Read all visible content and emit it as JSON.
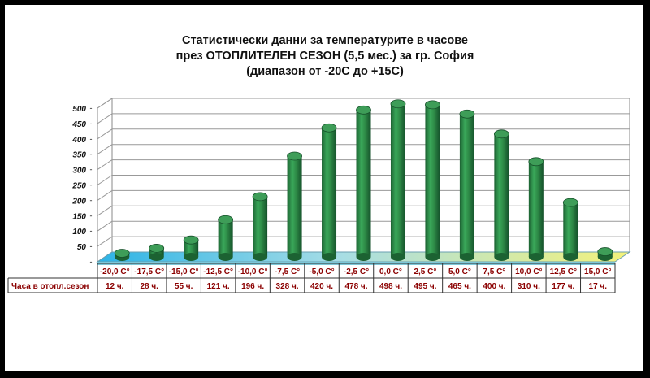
{
  "title": {
    "line1": "Статистически данни за температурите в часове",
    "line2": "през ОТОПЛИТЕЛЕН СЕЗОН (5,5 мес.) за гр. София",
    "line3": "(диапазон от -20С до +15С)"
  },
  "chart_data": {
    "type": "bar",
    "title": "Статистически данни за температурите в часове през ОТОПЛИТЕЛЕН СЕЗОН (5,5 мес.) за гр. София (диапазон от -20С до +15С)",
    "categories": [
      "-20,0 C°",
      "-17,5 C°",
      "-15,0 C°",
      "-12,5 C°",
      "-10,0 C°",
      "-7,5 C°",
      "-5,0 C°",
      "-2,5 C°",
      "0,0 C°",
      "2,5 C°",
      "5,0 C°",
      "7,5 C°",
      "10,0 C°",
      "12,5 C°",
      "15,0 C°"
    ],
    "series": [
      {
        "name": "Часа в отопл.сезон",
        "values": [
          12,
          28,
          55,
          121,
          196,
          328,
          420,
          478,
          498,
          495,
          465,
          400,
          310,
          177,
          17
        ],
        "labels": [
          "12 ч.",
          "28 ч.",
          "55 ч.",
          "121 ч.",
          "196 ч.",
          "328 ч.",
          "420 ч.",
          "478 ч.",
          "498 ч.",
          "495 ч.",
          "465 ч.",
          "400 ч.",
          "310 ч.",
          "177 ч.",
          "17 ч."
        ]
      }
    ],
    "ylim": [
      0,
      500
    ],
    "yticks": [
      "500",
      "450",
      "400",
      "350",
      "300",
      "250",
      "200",
      "150",
      "100",
      "50",
      ""
    ],
    "grid": true,
    "legend": "data table",
    "colors": {
      "bar": "#2e8b47",
      "bar_dark": "#1a5a2c",
      "floor_left": "#29b6e8",
      "floor_right": "#f2f07a",
      "text": "#8b0000"
    }
  }
}
